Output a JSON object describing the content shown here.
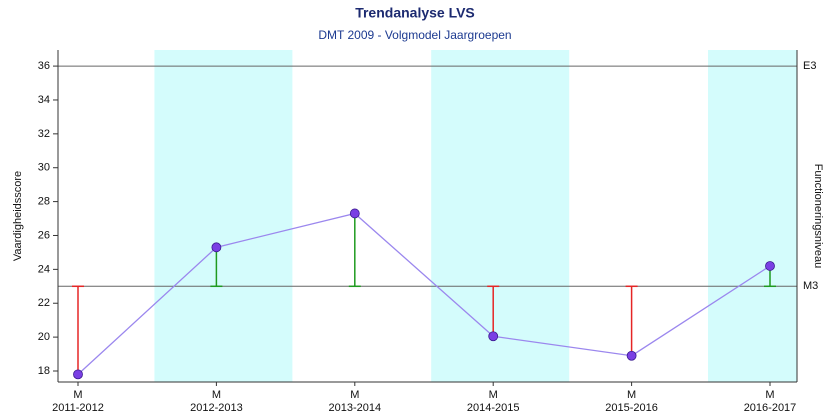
{
  "chart_data": {
    "type": "line",
    "title": "Trendanalyse LVS",
    "subtitle": "DMT 2009 - Volgmodel Jaargroepen",
    "y_label": "Vaardigheidsscore",
    "y2_label": "Functioneringsniveau",
    "categories": [
      "2011-2012",
      "2012-2013",
      "2013-2014",
      "2014-2015",
      "2015-2016",
      "2016-2017"
    ],
    "levels": [
      "M",
      "M",
      "M",
      "M",
      "M",
      "M"
    ],
    "values": [
      17.8,
      25.3,
      27.3,
      20.05,
      18.9,
      24.2
    ],
    "color": "#9b87ee",
    "marker_color": "#7a3fe4",
    "above_color": "#1f9a1f",
    "below_color": "#e52525",
    "band_color": "#d4fcfc",
    "reference_lines": [
      {
        "label": "E3",
        "value": 36
      },
      {
        "label": "M3",
        "value": 23
      }
    ],
    "ylim": [
      17.35,
      36.95
    ],
    "yticks": [
      18,
      20,
      22,
      24,
      26,
      28,
      30,
      32,
      34,
      36
    ]
  }
}
